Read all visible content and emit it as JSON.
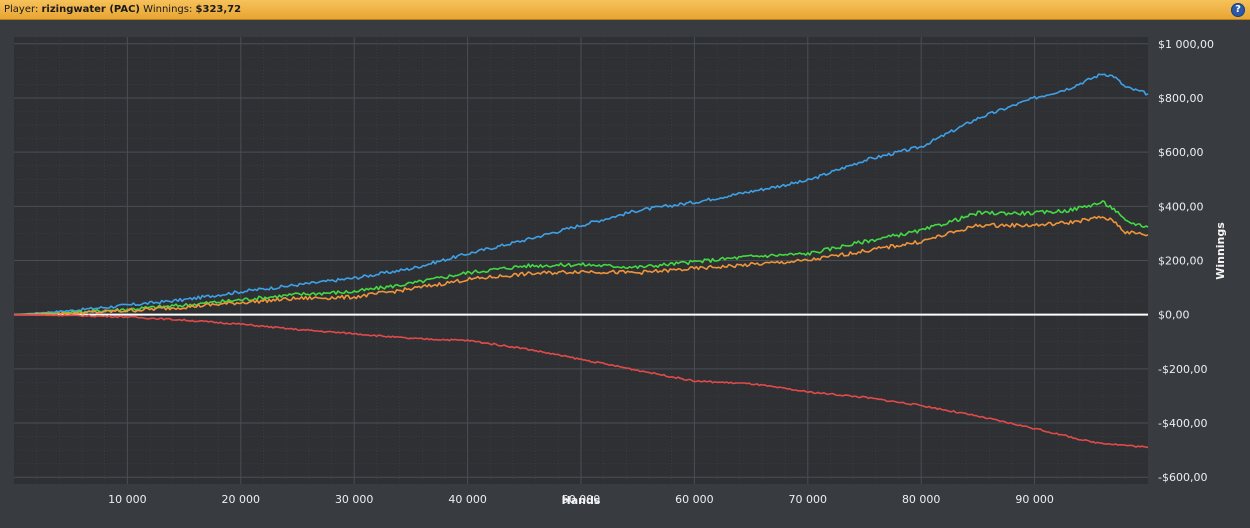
{
  "header": {
    "player_label": "Player:",
    "player_name": "rizingwater (PAC)",
    "winnings_label": "Winnings:",
    "winnings_value": "$323,72",
    "help_glyph": "?"
  },
  "colors": {
    "background": "#383b3f",
    "plot_background": "#2e3034",
    "grid": "#4a4e53",
    "zero_line": "#ffffff"
  },
  "chart_data": {
    "type": "line",
    "xlabel": "Hands",
    "ylabel": "Winnings",
    "xlim": [
      0,
      100000
    ],
    "ylim": [
      -625,
      1025
    ],
    "x_ticks": [
      10000,
      20000,
      30000,
      40000,
      50000,
      60000,
      70000,
      80000,
      90000
    ],
    "x_tick_labels": [
      "10 000",
      "20 000",
      "30 000",
      "40 000",
      "50 000",
      "60 000",
      "70 000",
      "80 000",
      "90 000"
    ],
    "y_ticks": [
      1000,
      800,
      600,
      400,
      200,
      0,
      -200,
      -400,
      -600
    ],
    "y_tick_labels": [
      "$1 000,00",
      "$800,00",
      "$600,00",
      "$400,00",
      "$200,00",
      "$0,00",
      "-$200,00",
      "-$400,00",
      "-$600,00"
    ],
    "grid": true,
    "series": [
      {
        "color": "#3ea0e6",
        "points": [
          [
            0,
            0
          ],
          [
            5000,
            15
          ],
          [
            10000,
            35
          ],
          [
            15000,
            55
          ],
          [
            20000,
            85
          ],
          [
            25000,
            110
          ],
          [
            30000,
            135
          ],
          [
            35000,
            170
          ],
          [
            40000,
            225
          ],
          [
            45000,
            275
          ],
          [
            50000,
            330
          ],
          [
            55000,
            385
          ],
          [
            60000,
            415
          ],
          [
            65000,
            455
          ],
          [
            70000,
            495
          ],
          [
            75000,
            570
          ],
          [
            80000,
            620
          ],
          [
            85000,
            725
          ],
          [
            90000,
            800
          ],
          [
            93000,
            835
          ],
          [
            96000,
            890
          ],
          [
            97000,
            880
          ],
          [
            98000,
            840
          ],
          [
            100000,
            815
          ]
        ]
      },
      {
        "color": "#43d943",
        "points": [
          [
            0,
            0
          ],
          [
            5000,
            8
          ],
          [
            10000,
            20
          ],
          [
            15000,
            35
          ],
          [
            20000,
            55
          ],
          [
            25000,
            75
          ],
          [
            30000,
            85
          ],
          [
            35000,
            115
          ],
          [
            40000,
            155
          ],
          [
            45000,
            180
          ],
          [
            50000,
            185
          ],
          [
            55000,
            175
          ],
          [
            60000,
            195
          ],
          [
            65000,
            215
          ],
          [
            70000,
            225
          ],
          [
            75000,
            270
          ],
          [
            80000,
            310
          ],
          [
            85000,
            375
          ],
          [
            90000,
            375
          ],
          [
            93000,
            385
          ],
          [
            96000,
            415
          ],
          [
            97000,
            390
          ],
          [
            98000,
            345
          ],
          [
            100000,
            323.72
          ]
        ]
      },
      {
        "color": "#f0943a",
        "points": [
          [
            0,
            0
          ],
          [
            5000,
            5
          ],
          [
            10000,
            15
          ],
          [
            15000,
            28
          ],
          [
            20000,
            45
          ],
          [
            25000,
            60
          ],
          [
            30000,
            65
          ],
          [
            35000,
            95
          ],
          [
            40000,
            130
          ],
          [
            45000,
            150
          ],
          [
            50000,
            160
          ],
          [
            55000,
            155
          ],
          [
            60000,
            170
          ],
          [
            65000,
            185
          ],
          [
            70000,
            200
          ],
          [
            75000,
            235
          ],
          [
            80000,
            270
          ],
          [
            85000,
            330
          ],
          [
            90000,
            330
          ],
          [
            93000,
            340
          ],
          [
            96000,
            360
          ],
          [
            97000,
            345
          ],
          [
            98000,
            305
          ],
          [
            100000,
            295
          ]
        ]
      },
      {
        "color": "#e04a4a",
        "points": [
          [
            0,
            0
          ],
          [
            5000,
            -3
          ],
          [
            10000,
            -8
          ],
          [
            15000,
            -20
          ],
          [
            20000,
            -35
          ],
          [
            25000,
            -55
          ],
          [
            30000,
            -70
          ],
          [
            35000,
            -88
          ],
          [
            40000,
            -95
          ],
          [
            45000,
            -125
          ],
          [
            50000,
            -165
          ],
          [
            55000,
            -205
          ],
          [
            60000,
            -245
          ],
          [
            65000,
            -255
          ],
          [
            70000,
            -285
          ],
          [
            75000,
            -305
          ],
          [
            80000,
            -335
          ],
          [
            85000,
            -375
          ],
          [
            90000,
            -420
          ],
          [
            95000,
            -470
          ],
          [
            100000,
            -490
          ]
        ]
      }
    ]
  }
}
